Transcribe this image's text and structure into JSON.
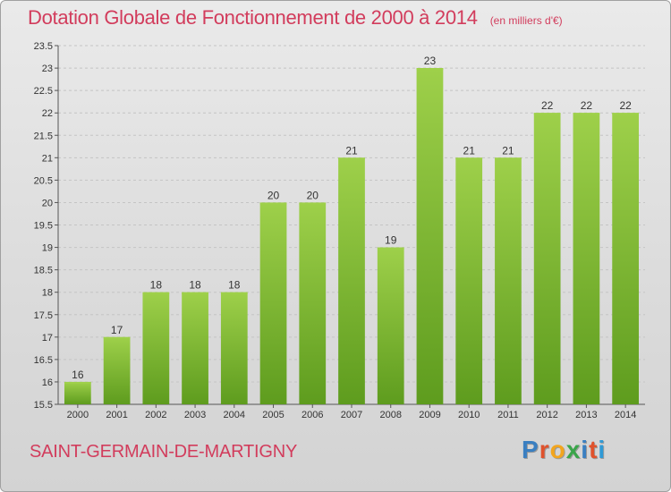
{
  "header": {
    "title": "Dotation Globale de Fonctionnement de 2000 à 2014",
    "subtitle": "(en milliers d'€)"
  },
  "footer": {
    "commune": "SAINT-GERMAIN-DE-MARTIGNY",
    "logo_letters": [
      "P",
      "r",
      "o",
      "x",
      "i",
      "t",
      "i"
    ],
    "logo_colors": [
      "#3a7fc1",
      "#e0522c",
      "#f2a51f",
      "#3aa54a",
      "#3a7fc1",
      "#e0522c",
      "#2f9ad6"
    ]
  },
  "chart_data": {
    "type": "bar",
    "title": "Dotation Globale de Fonctionnement de 2000 à 2014",
    "subtitle": "(en milliers d'€)",
    "xlabel": "",
    "ylabel": "",
    "categories": [
      "2000",
      "2001",
      "2002",
      "2003",
      "2004",
      "2005",
      "2006",
      "2007",
      "2008",
      "2009",
      "2010",
      "2011",
      "2012",
      "2013",
      "2014"
    ],
    "values": [
      16,
      17,
      18,
      18,
      18,
      20,
      20,
      21,
      19,
      23,
      21,
      21,
      22,
      22,
      22
    ],
    "value_labels": [
      "16",
      "17",
      "18",
      "18",
      "18",
      "20",
      "20",
      "21",
      "19",
      "23",
      "21",
      "21",
      "22",
      "22",
      "22"
    ],
    "ylim": [
      15.5,
      23.5
    ],
    "yticks": [
      15.5,
      16,
      16.5,
      17,
      17.5,
      18,
      18.5,
      19,
      19.5,
      20,
      20.5,
      21,
      21.5,
      22,
      22.5,
      23,
      23.5
    ],
    "ytick_labels": [
      "15.5",
      "16",
      "16.5",
      "17",
      "17.5",
      "18",
      "18.5",
      "19",
      "19.5",
      "20",
      "20.5",
      "21",
      "21.5",
      "22",
      "22.5",
      "23",
      "23.5"
    ],
    "grid": true,
    "legend": "none",
    "bar_color": "#7cc134",
    "bar_color_light": "#9ed04a",
    "bar_color_dark": "#5e9c1e"
  }
}
